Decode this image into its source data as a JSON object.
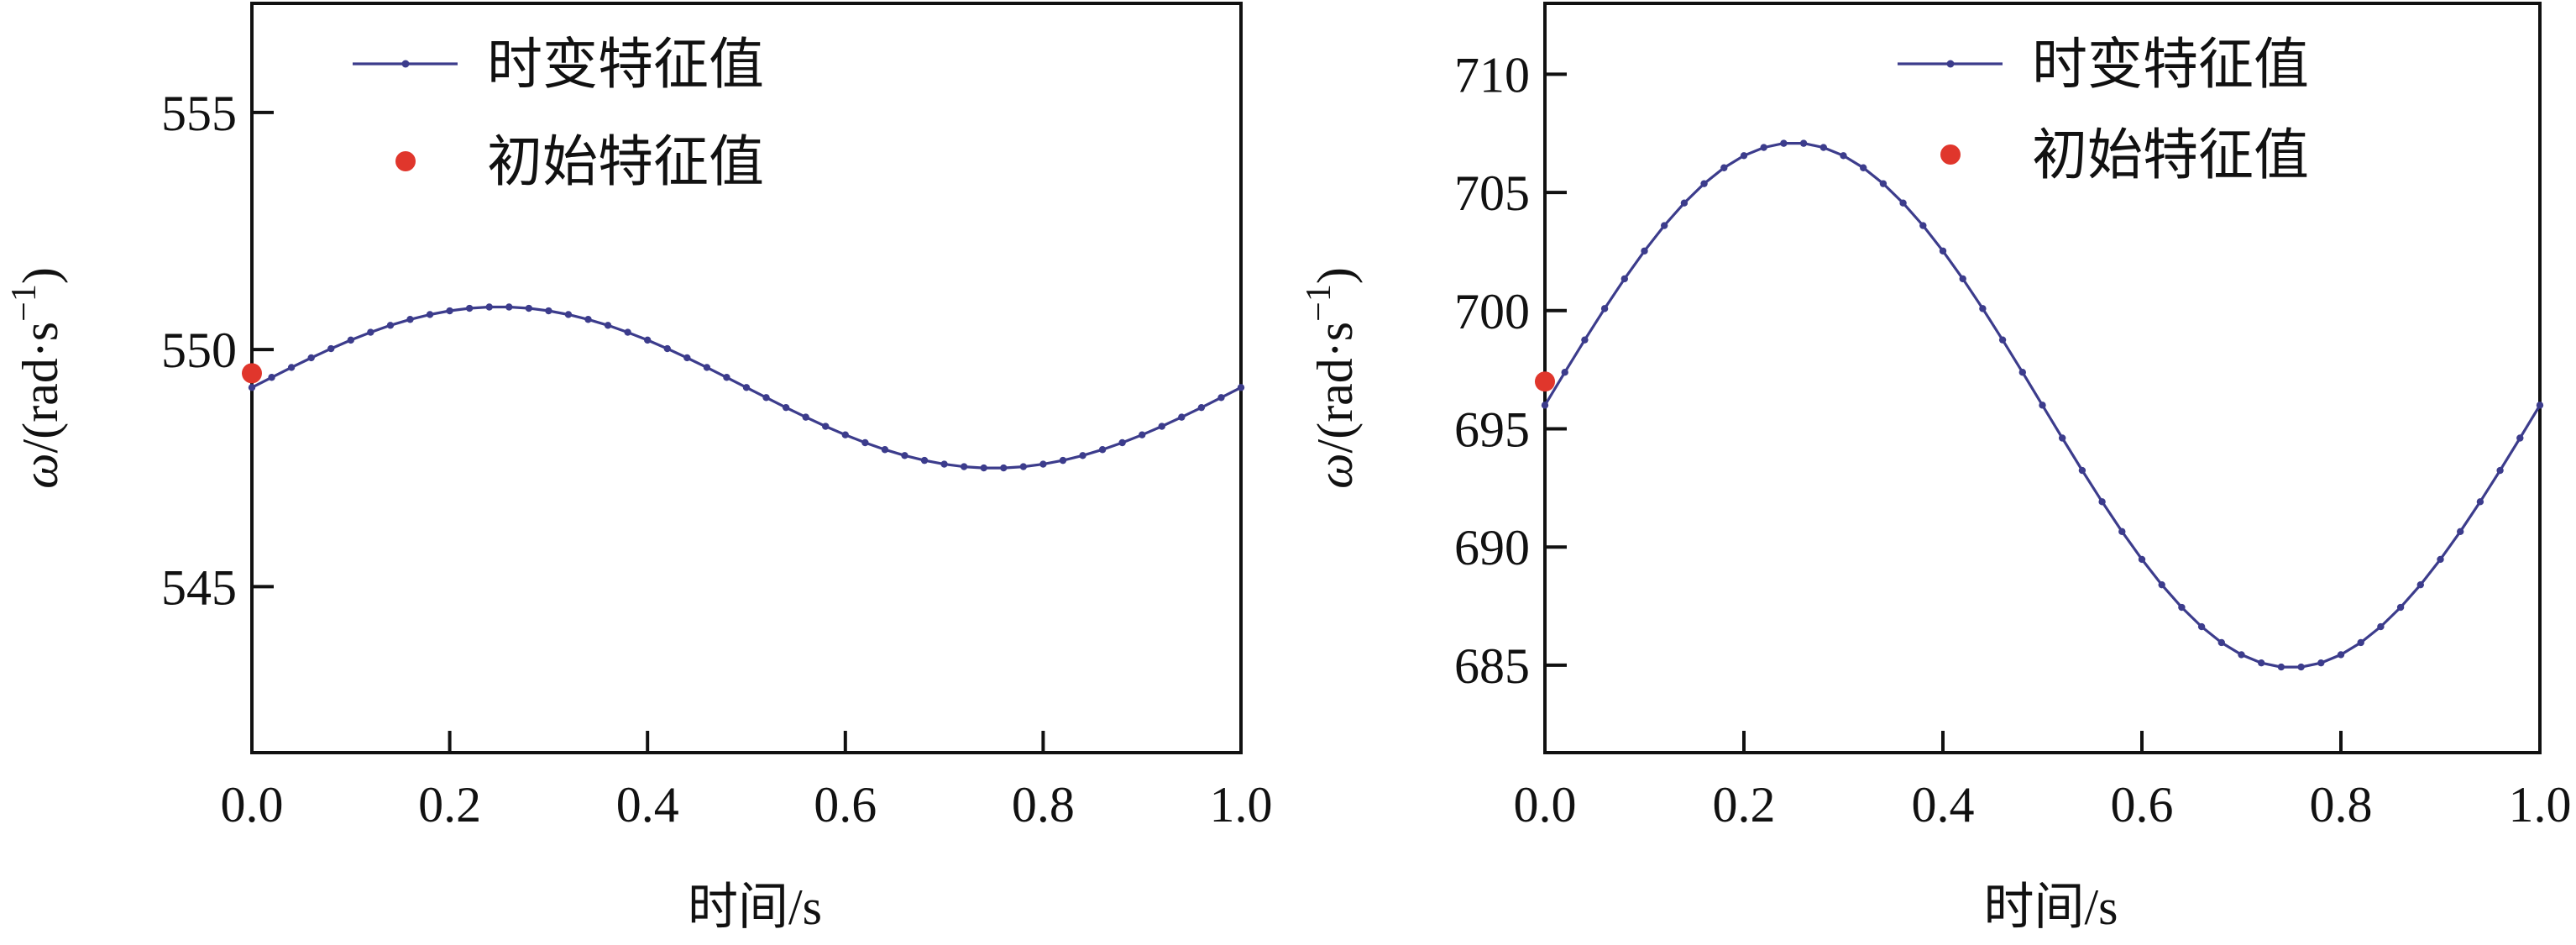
{
  "chart_data": [
    {
      "type": "line",
      "xlabel": "时间/s",
      "ylabel_main": "ω",
      "ylabel_unit": "/(rad·s",
      "ylabel_exp": "−1",
      "ylabel_close": ")",
      "xlim": [
        0,
        1
      ],
      "ylim": [
        541.5,
        557.3
      ],
      "xticks": [
        0.0,
        0.2,
        0.4,
        0.6,
        0.8,
        1.0
      ],
      "xtick_labels": [
        "0.0",
        "0.2",
        "0.4",
        "0.6",
        "0.8",
        "1.0"
      ],
      "yticks": [
        545,
        550,
        555
      ],
      "ytick_labels": [
        "545",
        "550",
        "555"
      ],
      "legend_position": "top-center",
      "series": [
        {
          "name": "时变特征值",
          "kind": "line-with-markers",
          "color": "#3c3c8c",
          "function": "sine",
          "mean": 549.2,
          "amplitude": 1.7,
          "period": 1.0,
          "n_points": 51
        },
        {
          "name": "初始特征值",
          "kind": "point",
          "color": "#e0362c",
          "x": [
            0.0
          ],
          "y": [
            549.5
          ]
        }
      ]
    },
    {
      "type": "line",
      "xlabel": "时间/s",
      "ylabel_main": "ω",
      "ylabel_unit": "/(rad·s",
      "ylabel_exp": "−1",
      "ylabel_close": ")",
      "xlim": [
        0,
        1
      ],
      "ylim": [
        681.3,
        713.0
      ],
      "xticks": [
        0.0,
        0.2,
        0.4,
        0.6,
        0.8,
        1.0
      ],
      "xtick_labels": [
        "0.0",
        "0.2",
        "0.4",
        "0.6",
        "0.8",
        "1.0"
      ],
      "yticks": [
        685,
        690,
        695,
        700,
        705,
        710
      ],
      "ytick_labels": [
        "685",
        "690",
        "695",
        "700",
        "705",
        "710"
      ],
      "legend_position": "top-right",
      "series": [
        {
          "name": "时变特征值",
          "kind": "line-with-markers",
          "color": "#3c3c8c",
          "function": "sine",
          "mean": 696.0,
          "amplitude": 11.1,
          "period": 1.0,
          "n_points": 51
        },
        {
          "name": "初始特征值",
          "kind": "point",
          "color": "#e0362c",
          "x": [
            0.0
          ],
          "y": [
            697.0
          ]
        }
      ]
    }
  ]
}
